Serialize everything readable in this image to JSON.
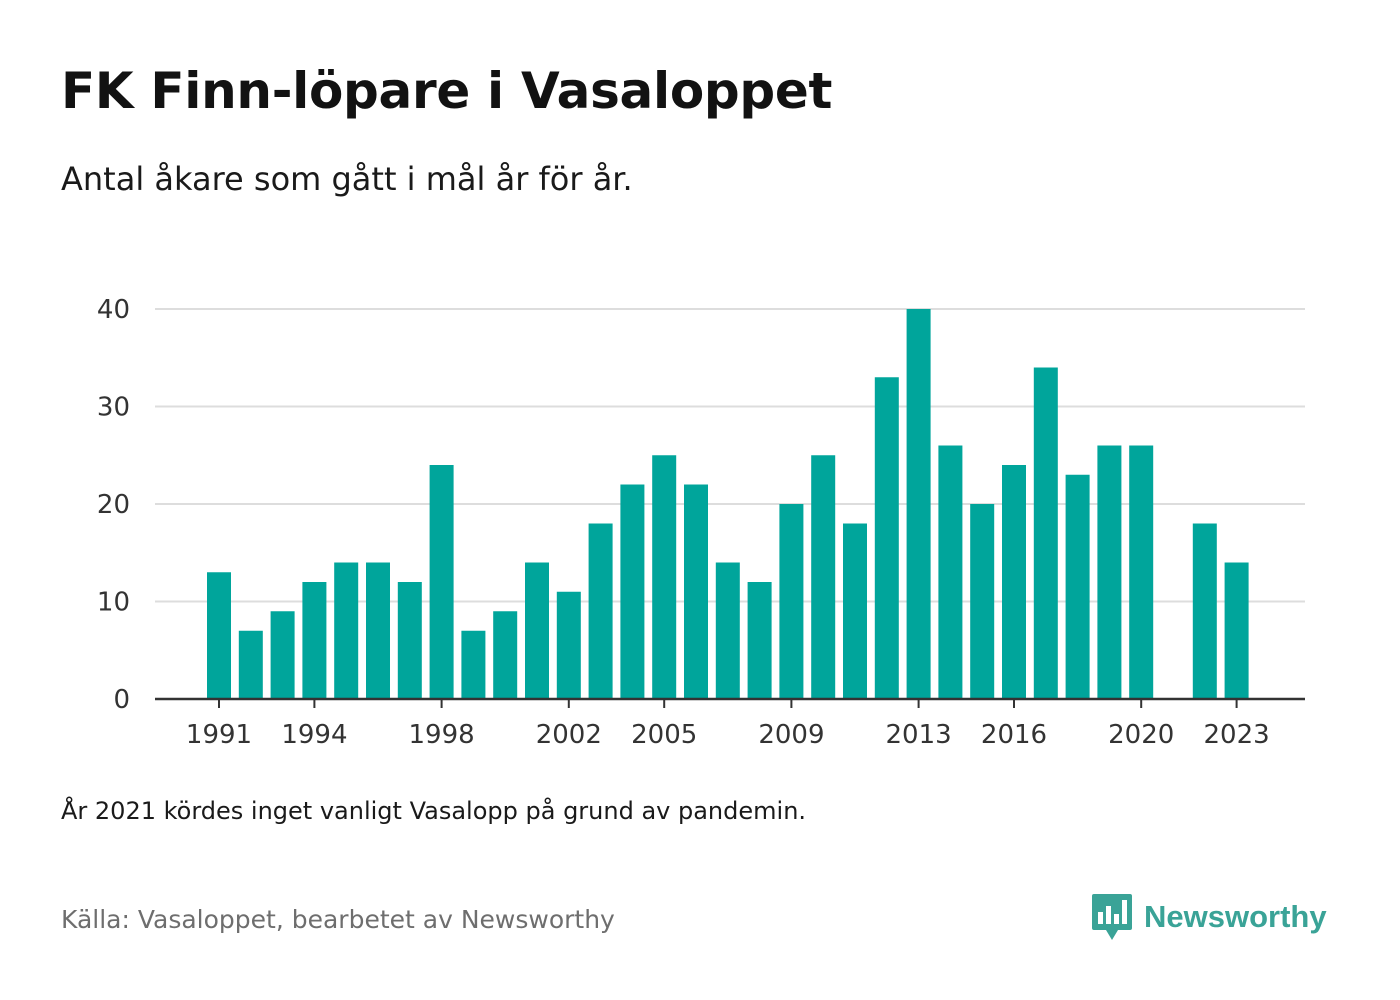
{
  "title": "FK Finn-löpare i Vasaloppet",
  "subtitle": "Antal åkare som gått i mål år för år.",
  "note": "År 2021 kördes inget vanligt Vasalopp på grund av pandemin.",
  "source": "Källa: Vasaloppet, bearbetet av Newsworthy",
  "brand": {
    "name": "Newsworthy",
    "icon": "newsworthy-logo-icon"
  },
  "colors": {
    "bar": "#00a59b",
    "grid": "#dddddd",
    "axis": "#333333",
    "brand": "#3aa397"
  },
  "chart_data": {
    "type": "bar",
    "title": "FK Finn-löpare i Vasaloppet",
    "subtitle": "Antal åkare som gått i mål år för år.",
    "xlabel": "",
    "ylabel": "",
    "categories": [
      1991,
      1992,
      1993,
      1994,
      1995,
      1996,
      1997,
      1998,
      1999,
      2000,
      2001,
      2002,
      2003,
      2004,
      2005,
      2006,
      2007,
      2008,
      2009,
      2010,
      2011,
      2012,
      2013,
      2014,
      2015,
      2016,
      2017,
      2018,
      2019,
      2020,
      2021,
      2022,
      2023
    ],
    "values": [
      13,
      7,
      9,
      12,
      14,
      14,
      12,
      24,
      7,
      9,
      14,
      11,
      18,
      22,
      25,
      22,
      14,
      12,
      20,
      25,
      18,
      33,
      40,
      26,
      20,
      24,
      34,
      23,
      26,
      26,
      null,
      18,
      14
    ],
    "xticks": [
      "1991",
      "1994",
      "1998",
      "2002",
      "2005",
      "2009",
      "2013",
      "2016",
      "2020",
      "2023"
    ],
    "yticks": [
      "0",
      "10",
      "20",
      "30",
      "40"
    ],
    "ylim": [
      0,
      40
    ],
    "grid": true,
    "legend": "none"
  }
}
